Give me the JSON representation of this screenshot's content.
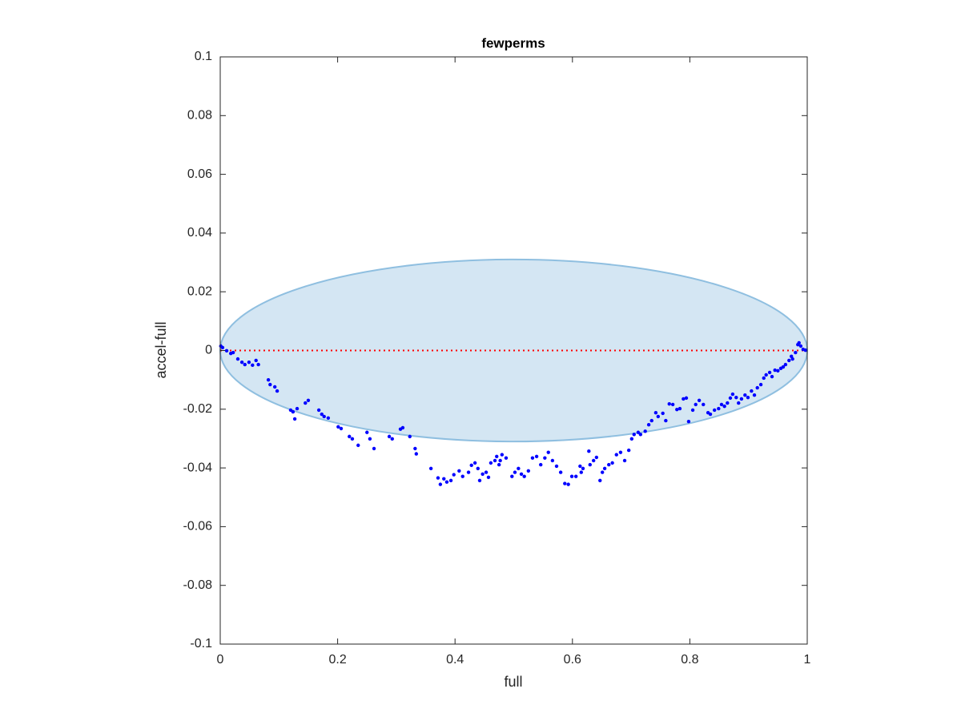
{
  "chart_data": {
    "type": "scatter",
    "title": "fewperms",
    "x_label": "full",
    "y_label": "accel-full",
    "xlim": [
      0,
      1
    ],
    "ylim": [
      -0.1,
      0.1
    ],
    "xticks": [
      0,
      0.2,
      0.4,
      0.6,
      0.8,
      1
    ],
    "yticks": [
      -0.1,
      -0.08,
      -0.06,
      -0.04,
      -0.02,
      0,
      0.02,
      0.04,
      0.06,
      0.08,
      0.1
    ],
    "grid": false,
    "ellipse": {
      "center": [
        0.5,
        0
      ],
      "radii": [
        0.5,
        0.031
      ],
      "color": "#d4e6f3",
      "edge_color": "#8fbfe0"
    },
    "reference_line": {
      "y": 0,
      "color": "#ff0000"
    },
    "series": [
      {
        "color": "#0000ff",
        "x": [
          0.001,
          0.004,
          0.011,
          0.018,
          0.022,
          0.03,
          0.037,
          0.042,
          0.049,
          0.055,
          0.061,
          0.065,
          0.082,
          0.085,
          0.093,
          0.097,
          0.12,
          0.124,
          0.127,
          0.131,
          0.145,
          0.15,
          0.168,
          0.173,
          0.177,
          0.184,
          0.201,
          0.206,
          0.22,
          0.225,
          0.235,
          0.25,
          0.255,
          0.262,
          0.288,
          0.293,
          0.307,
          0.311,
          0.323,
          0.332,
          0.334,
          0.359,
          0.371,
          0.375,
          0.381,
          0.386,
          0.393,
          0.398,
          0.407,
          0.413,
          0.423,
          0.428,
          0.434,
          0.439,
          0.442,
          0.447,
          0.453,
          0.457,
          0.461,
          0.468,
          0.471,
          0.475,
          0.477,
          0.48,
          0.487,
          0.497,
          0.502,
          0.508,
          0.513,
          0.518,
          0.525,
          0.532,
          0.539,
          0.546,
          0.553,
          0.559,
          0.566,
          0.573,
          0.58,
          0.587,
          0.593,
          0.599,
          0.606,
          0.613,
          0.615,
          0.618,
          0.628,
          0.63,
          0.636,
          0.641,
          0.647,
          0.651,
          0.655,
          0.662,
          0.668,
          0.675,
          0.682,
          0.689,
          0.696,
          0.701,
          0.705,
          0.712,
          0.716,
          0.724,
          0.73,
          0.735,
          0.742,
          0.746,
          0.754,
          0.759,
          0.765,
          0.771,
          0.778,
          0.783,
          0.789,
          0.794,
          0.798,
          0.805,
          0.81,
          0.816,
          0.823,
          0.831,
          0.835,
          0.842,
          0.849,
          0.854,
          0.859,
          0.864,
          0.869,
          0.873,
          0.879,
          0.883,
          0.888,
          0.894,
          0.899,
          0.905,
          0.91,
          0.915,
          0.921,
          0.926,
          0.93,
          0.936,
          0.94,
          0.945,
          0.95,
          0.955,
          0.959,
          0.963,
          0.969,
          0.973,
          0.975,
          0.98,
          0.984,
          0.986,
          0.989,
          0.993,
          0.997
        ],
        "values": [
          0.0015,
          0.001,
          -0.0001,
          -0.001,
          -0.0007,
          -0.0029,
          -0.004,
          -0.0048,
          -0.004,
          -0.005,
          -0.0034,
          -0.0048,
          -0.01,
          -0.0116,
          -0.0124,
          -0.0138,
          -0.0203,
          -0.0209,
          -0.0233,
          -0.0198,
          -0.0179,
          -0.017,
          -0.0203,
          -0.0217,
          -0.0225,
          -0.023,
          -0.026,
          -0.0266,
          -0.0293,
          -0.0301,
          -0.0323,
          -0.0279,
          -0.0301,
          -0.0334,
          -0.0293,
          -0.0301,
          -0.0268,
          -0.0263,
          -0.0293,
          -0.0334,
          -0.0352,
          -0.0402,
          -0.0434,
          -0.0456,
          -0.0437,
          -0.0448,
          -0.0443,
          -0.0423,
          -0.041,
          -0.0429,
          -0.0415,
          -0.0391,
          -0.0383,
          -0.0402,
          -0.0443,
          -0.0421,
          -0.0415,
          -0.0432,
          -0.0383,
          -0.0375,
          -0.0361,
          -0.0389,
          -0.0375,
          -0.0355,
          -0.0366,
          -0.0429,
          -0.0415,
          -0.0402,
          -0.0421,
          -0.0429,
          -0.041,
          -0.0366,
          -0.0361,
          -0.0389,
          -0.0366,
          -0.0347,
          -0.0375,
          -0.0394,
          -0.0415,
          -0.0453,
          -0.0456,
          -0.0429,
          -0.0429,
          -0.0394,
          -0.0415,
          -0.0402,
          -0.0343,
          -0.0389,
          -0.0375,
          -0.0364,
          -0.0443,
          -0.0415,
          -0.0402,
          -0.0389,
          -0.0383,
          -0.0355,
          -0.0347,
          -0.0375,
          -0.034,
          -0.0301,
          -0.0286,
          -0.0279,
          -0.0286,
          -0.0275,
          -0.0253,
          -0.0239,
          -0.0212,
          -0.0225,
          -0.0214,
          -0.0239,
          -0.0182,
          -0.0184,
          -0.0201,
          -0.0198,
          -0.0165,
          -0.0162,
          -0.0242,
          -0.0203,
          -0.0184,
          -0.017,
          -0.0184,
          -0.0212,
          -0.0217,
          -0.0203,
          -0.0198,
          -0.0184,
          -0.019,
          -0.0179,
          -0.0162,
          -0.0149,
          -0.016,
          -0.0179,
          -0.0165,
          -0.0152,
          -0.016,
          -0.0138,
          -0.0152,
          -0.0127,
          -0.0116,
          -0.0094,
          -0.0083,
          -0.0075,
          -0.0089,
          -0.0067,
          -0.0069,
          -0.0061,
          -0.0056,
          -0.0048,
          -0.0034,
          -0.002,
          -0.0029,
          -0.0007,
          0.002,
          0.0026,
          0.0015,
          0.0004,
          0.0001
        ]
      }
    ]
  }
}
